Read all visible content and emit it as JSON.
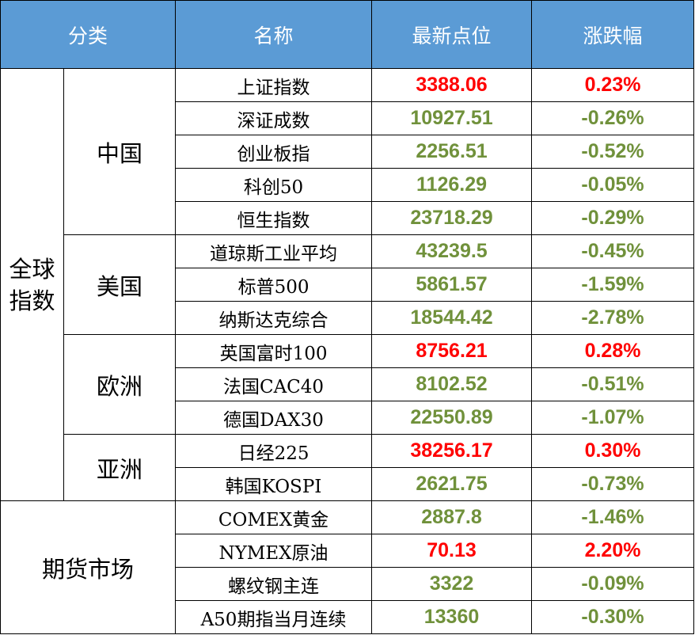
{
  "headers": {
    "category": "分类",
    "name": "名称",
    "latest": "最新点位",
    "change": "涨跌幅"
  },
  "categories": {
    "global": [
      "全球",
      "指数"
    ],
    "futures": "期货市场"
  },
  "regions": {
    "china": "中国",
    "usa": "美国",
    "europe": "欧洲",
    "asia": "亚洲"
  },
  "rows": [
    {
      "name": "上证指数",
      "value": "3388.06",
      "change": "0.23%",
      "direction": "up"
    },
    {
      "name": "深证成数",
      "value": "10927.51",
      "change": "-0.26%",
      "direction": "down"
    },
    {
      "name": "创业板指",
      "value": "2256.51",
      "change": "-0.52%",
      "direction": "down"
    },
    {
      "name": "科创50",
      "value": "1126.29",
      "change": "-0.05%",
      "direction": "down"
    },
    {
      "name": "恒生指数",
      "value": "23718.29",
      "change": "-0.29%",
      "direction": "down"
    },
    {
      "name": "道琼斯工业平均",
      "value": "43239.5",
      "change": "-0.45%",
      "direction": "down"
    },
    {
      "name": "标普500",
      "value": "5861.57",
      "change": "-1.59%",
      "direction": "down"
    },
    {
      "name": "纳斯达克综合",
      "value": "18544.42",
      "change": "-2.78%",
      "direction": "down"
    },
    {
      "name": "英国富时100",
      "value": "8756.21",
      "change": "0.28%",
      "direction": "up"
    },
    {
      "name": "法国CAC40",
      "value": "8102.52",
      "change": "-0.51%",
      "direction": "down"
    },
    {
      "name": "德国DAX30",
      "value": "22550.89",
      "change": "-1.07%",
      "direction": "down"
    },
    {
      "name": "日经225",
      "value": "38256.17",
      "change": "0.30%",
      "direction": "up"
    },
    {
      "name": "韩国KOSPI",
      "value": "2621.75",
      "change": "-0.73%",
      "direction": "down"
    },
    {
      "name": "COMEX黄金",
      "value": "2887.8",
      "change": "-1.46%",
      "direction": "down"
    },
    {
      "name": "NYMEX原油",
      "value": "70.13",
      "change": "2.20%",
      "direction": "up"
    },
    {
      "name": "螺纹钢主连",
      "value": "3322",
      "change": "-0.09%",
      "direction": "down"
    },
    {
      "name": "A50期指当月连续",
      "value": "13360",
      "change": "-0.30%",
      "direction": "down"
    }
  ],
  "colors": {
    "header_bg": "#5b9bd5",
    "header_text": "#ffffff",
    "up": "#ff0000",
    "down": "#70913b"
  }
}
